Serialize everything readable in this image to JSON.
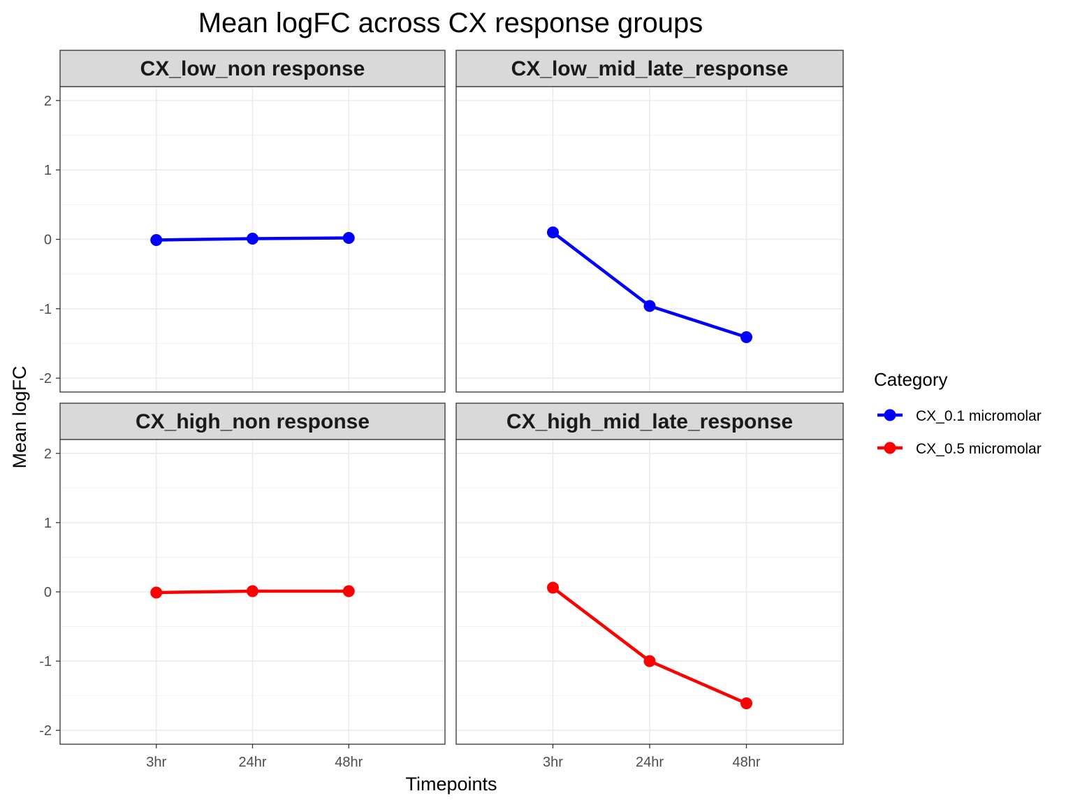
{
  "chart_data": {
    "type": "line",
    "title": "Mean logFC across CX response groups",
    "xlabel": "Timepoints",
    "ylabel": "Mean logFC",
    "categories": [
      "3hr",
      "24hr",
      "48hr"
    ],
    "ylim": [
      -2.2,
      2.2
    ],
    "yticks": [
      -2,
      -1,
      0,
      1,
      2
    ],
    "grid": true,
    "legend": {
      "title": "Category",
      "placement": "right",
      "entries": [
        {
          "label": "CX_0.1 micromolar",
          "color": "#0000ff"
        },
        {
          "label": "CX_0.5 micromolar",
          "color": "#ff0000"
        }
      ]
    },
    "panels": [
      {
        "label": "CX_low_non response",
        "series": [
          {
            "name": "CX_0.1 micromolar",
            "color": "#0000ff",
            "values": [
              -0.01,
              0.01,
              0.02
            ]
          }
        ]
      },
      {
        "label": "CX_low_mid_late_response",
        "series": [
          {
            "name": "CX_0.1 micromolar",
            "color": "#0000ff",
            "values": [
              0.1,
              -0.96,
              -1.41
            ]
          }
        ]
      },
      {
        "label": "CX_high_non response",
        "series": [
          {
            "name": "CX_0.5 micromolar",
            "color": "#ff0000",
            "values": [
              -0.01,
              0.01,
              0.01
            ]
          }
        ]
      },
      {
        "label": "CX_high_mid_late_response",
        "series": [
          {
            "name": "CX_0.5 micromolar",
            "color": "#ff0000",
            "values": [
              0.06,
              -1.0,
              -1.61
            ]
          }
        ]
      }
    ]
  }
}
